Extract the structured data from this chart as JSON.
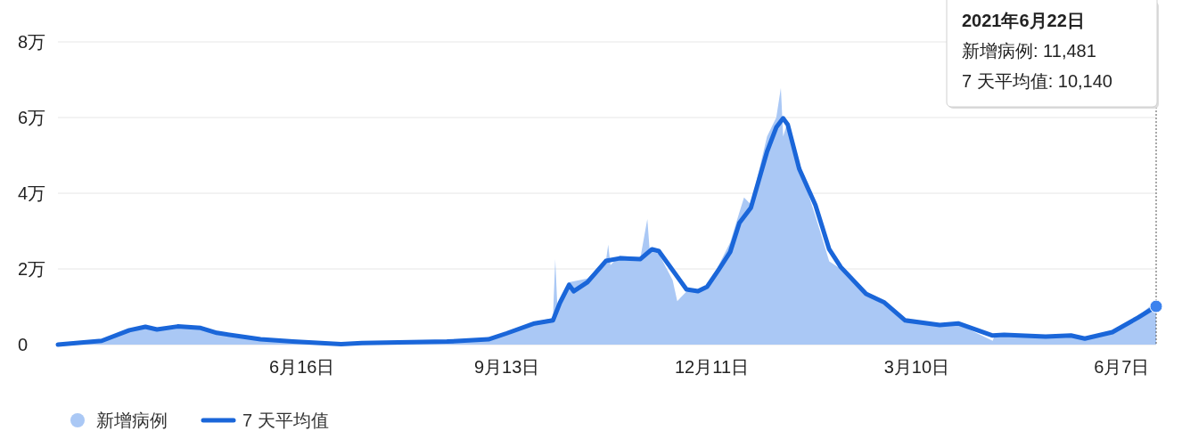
{
  "chart_data": {
    "type": "area",
    "xlim": [
      "2020-03-02",
      "2021-06-22"
    ],
    "xticks": [
      {
        "value": "2020-06-16",
        "label": "6月16日"
      },
      {
        "value": "2020-09-13",
        "label": "9月13日"
      },
      {
        "value": "2020-12-11",
        "label": "12月11日"
      },
      {
        "value": "2021-03-10",
        "label": "3月10日"
      },
      {
        "value": "2021-06-07",
        "label": "6月7日"
      }
    ],
    "ylim": [
      0,
      8
    ],
    "yticks": [
      0,
      {
        "value": 2,
        "label": "2万"
      },
      {
        "value": 4,
        "label": "4万"
      },
      {
        "value": 6,
        "label": "6万"
      },
      {
        "value": 8,
        "label": "8万"
      }
    ],
    "grid": "y",
    "legend": "bottom left",
    "series": [
      {
        "name": "新增病例",
        "color": "#aac8f5",
        "x": [
          "2020-03-02",
          "2020-03-21",
          "2020-04-02",
          "2020-04-09",
          "2020-04-14",
          "2020-04-23",
          "2020-05-03",
          "2020-05-10",
          "2020-05-29",
          "2020-06-12",
          "2020-07-03",
          "2020-07-12",
          "2020-08-18",
          "2020-09-05",
          "2020-09-13",
          "2020-09-25",
          "2020-10-03",
          "2020-10-04",
          "2020-10-05",
          "2020-10-10",
          "2020-10-18",
          "2020-10-26",
          "2020-10-27",
          "2020-10-28",
          "2020-11-01",
          "2020-11-10",
          "2020-11-13",
          "2020-11-14",
          "2020-11-18",
          "2020-11-24",
          "2020-11-26",
          "2020-11-30",
          "2020-12-05",
          "2020-12-09",
          "2020-12-14",
          "2020-12-19",
          "2020-12-23",
          "2020-12-25",
          "2020-12-28",
          "2021-01-04",
          "2021-01-08",
          "2021-01-10",
          "2021-01-11",
          "2021-01-13",
          "2021-01-18",
          "2021-01-25",
          "2021-01-31",
          "2021-02-05",
          "2021-02-16",
          "2021-02-24",
          "2021-03-05",
          "2021-03-20",
          "2021-03-28",
          "2021-04-12",
          "2021-04-13",
          "2021-04-17",
          "2021-05-05",
          "2021-05-16",
          "2021-05-22",
          "2021-06-03",
          "2021-06-14",
          "2021-06-22"
        ],
        "values": [
          0,
          0.12,
          0.42,
          0.5,
          0.42,
          0.5,
          0.46,
          0.32,
          0.15,
          0.09,
          0.02,
          0.05,
          0.09,
          0.16,
          0.32,
          0.6,
          0.7,
          2.26,
          0.9,
          1.65,
          1.75,
          2.2,
          2.64,
          2.1,
          2.35,
          2.3,
          3.32,
          2.5,
          2.4,
          1.7,
          1.15,
          1.4,
          1.45,
          1.5,
          2.1,
          2.7,
          3.5,
          3.89,
          3.7,
          5.5,
          6,
          6.78,
          5.5,
          5.9,
          4.7,
          3.4,
          2.2,
          2,
          1.3,
          1.05,
          0.6,
          0.5,
          0.54,
          0.1,
          0.26,
          0.26,
          0.21,
          0.24,
          0.17,
          0.36,
          0.75,
          1.15
        ]
      },
      {
        "name": "7 天平均值",
        "type": "line",
        "color": "#1a66d9",
        "x": [
          "2020-03-02",
          "2020-03-21",
          "2020-04-02",
          "2020-04-09",
          "2020-04-14",
          "2020-04-23",
          "2020-05-03",
          "2020-05-10",
          "2020-05-29",
          "2020-06-12",
          "2020-07-03",
          "2020-07-12",
          "2020-08-18",
          "2020-09-05",
          "2020-09-13",
          "2020-09-25",
          "2020-10-03",
          "2020-10-06",
          "2020-10-10",
          "2020-10-12",
          "2020-10-18",
          "2020-10-26",
          "2020-11-01",
          "2020-11-10",
          "2020-11-15",
          "2020-11-18",
          "2020-11-30",
          "2020-12-05",
          "2020-12-09",
          "2020-12-14",
          "2020-12-19",
          "2020-12-23",
          "2020-12-28",
          "2021-01-04",
          "2021-01-08",
          "2021-01-11",
          "2021-01-13",
          "2021-01-18",
          "2021-01-25",
          "2021-01-31",
          "2021-02-05",
          "2021-02-16",
          "2021-02-24",
          "2021-03-05",
          "2021-03-20",
          "2021-03-28",
          "2021-04-12",
          "2021-04-17",
          "2021-05-05",
          "2021-05-16",
          "2021-05-22",
          "2021-06-03",
          "2021-06-14",
          "2021-06-22"
        ],
        "values": [
          0,
          0.1,
          0.38,
          0.47,
          0.4,
          0.48,
          0.44,
          0.31,
          0.14,
          0.08,
          0.01,
          0.04,
          0.08,
          0.14,
          0.3,
          0.56,
          0.64,
          1.1,
          1.58,
          1.41,
          1.65,
          2.21,
          2.28,
          2.26,
          2.52,
          2.47,
          1.46,
          1.41,
          1.53,
          1.98,
          2.45,
          3.22,
          3.62,
          5.1,
          5.74,
          5.98,
          5.81,
          4.64,
          3.69,
          2.52,
          2.05,
          1.34,
          1.11,
          0.64,
          0.52,
          0.56,
          0.24,
          0.26,
          0.21,
          0.24,
          0.16,
          0.33,
          0.71,
          1.01
        ]
      }
    ],
    "annotations": [
      "2021年6月22日",
      "新增病例: 11,481",
      "7 天平均值: 10,140"
    ]
  }
}
